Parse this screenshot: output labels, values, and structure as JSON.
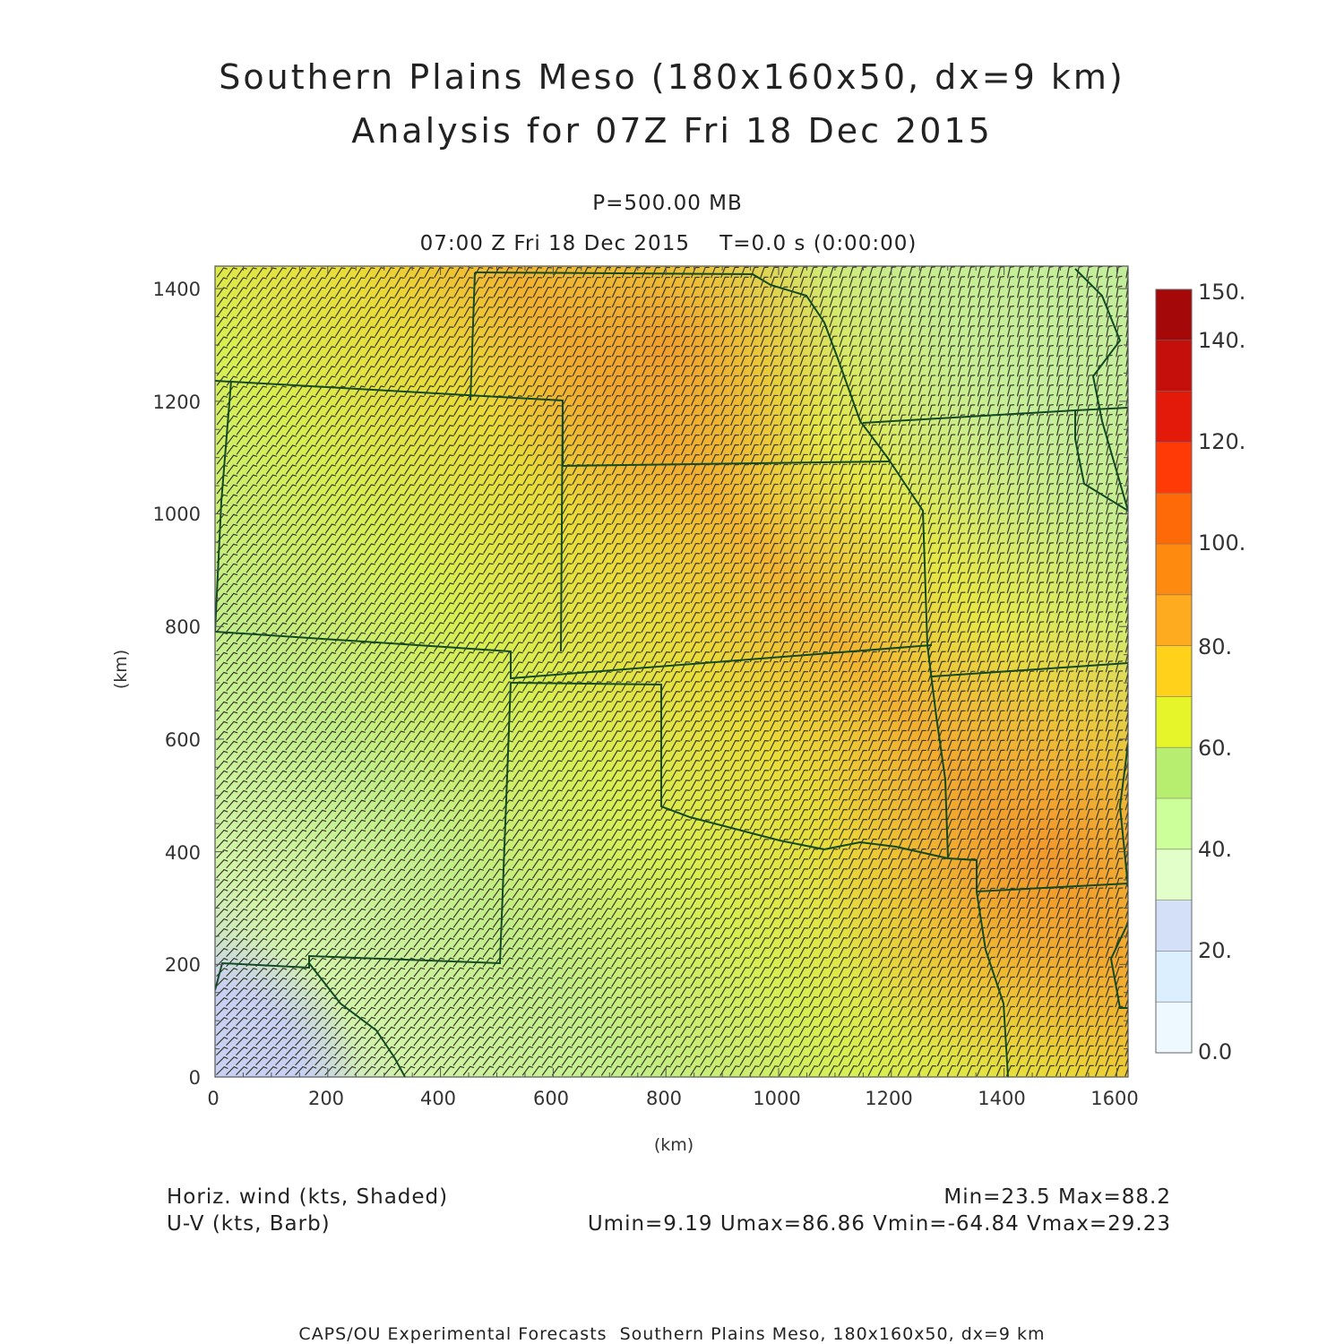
{
  "header": {
    "title_line1": "Southern Plains Meso (180x160x50, dx=9 km)",
    "title_line2": "Analysis for 07Z Fri 18 Dec 2015",
    "level": "P=500.00 MB",
    "time": "07:00 Z Fri 18 Dec 2015    T=0.0 s (0:00:00)"
  },
  "axes": {
    "x_label": "(km)",
    "y_label": "(km)",
    "x_ticks": [
      "0",
      "200",
      "400",
      "600",
      "800",
      "1000",
      "1200",
      "1400",
      "1600"
    ],
    "y_ticks": [
      "0",
      "200",
      "400",
      "600",
      "800",
      "1000",
      "1200",
      "1400"
    ],
    "xlim": [
      0,
      1620
    ],
    "ylim": [
      0,
      1440
    ]
  },
  "colorbar": {
    "labels": [
      "0.0",
      "20.",
      "40.",
      "60.",
      "80.",
      "100.",
      "120.",
      "140.",
      "150."
    ],
    "colors": [
      "#eef8ff",
      "#dcefff",
      "#d4e0f8",
      "#e2ffca",
      "#ccff99",
      "#b8ee70",
      "#e6f52a",
      "#ffd11a",
      "#ffab1f",
      "#ff8a10",
      "#ff6a08",
      "#ff3a06",
      "#e31a0a",
      "#c40f0a",
      "#a40808"
    ]
  },
  "map": {
    "shading_colors": {
      "low": "#c8d0f4",
      "mid": "#d2f4a8",
      "green": "#b8e870",
      "yellow": "#e6f22c",
      "orange": "#f5a520"
    },
    "border_color": "#134a25",
    "barb_color": "#3a3a2c"
  },
  "legend": {
    "shaded": "Horiz. wind (kts, Shaded)",
    "barb": "U-V (kts, Barb)",
    "minmax": "Min=23.5 Max=88.2",
    "uv_stats": "Umin=9.19 Umax=86.86 Vmin=-64.84 Vmax=29.23"
  },
  "footer": {
    "credit": "CAPS/OU Experimental Forecasts  Southern Plains Meso, 180x160x50, dx=9 km"
  }
}
